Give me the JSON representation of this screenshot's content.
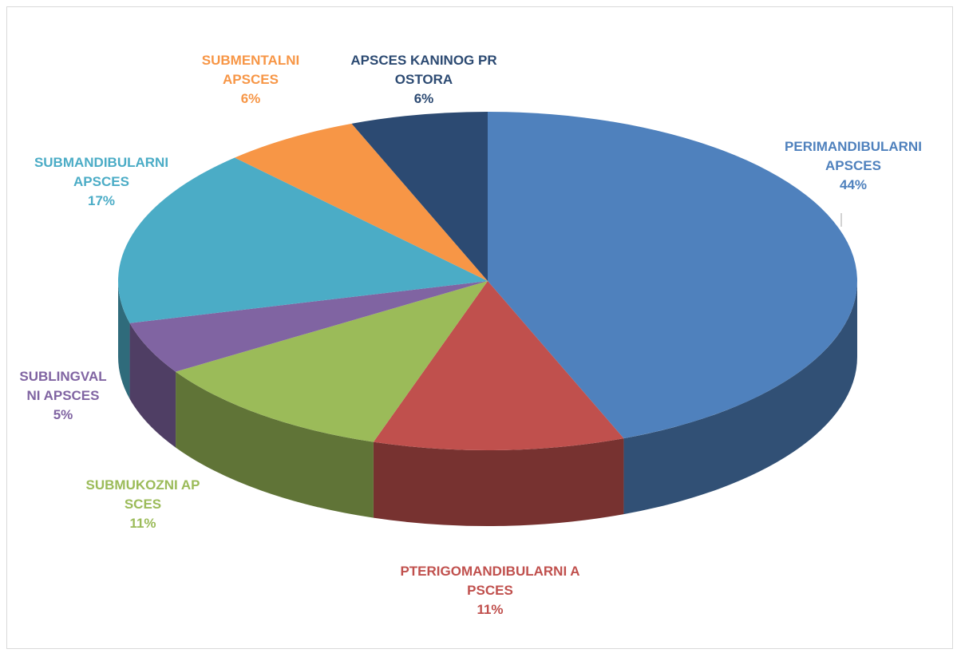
{
  "chart_data": {
    "type": "pie",
    "categories": [
      "PERIMANDIBULARNI APSCES",
      "PTERIGOMANDIBULARNI APSCES",
      "SUBMUKOZNI APSCES",
      "SUBLINGVALNI APSCES",
      "SUBMANDIBULARNI APSCES",
      "SUBMENTALNI APSCES",
      "APSCES KANINOG PROSTORA"
    ],
    "values": [
      44,
      11,
      11,
      5,
      17,
      6,
      6
    ],
    "value_labels": [
      "44%",
      "11%",
      "11%",
      "5%",
      "17%",
      "6%",
      "6%"
    ],
    "colors": [
      "#4f81bd",
      "#c0504d",
      "#9bbb59",
      "#8064a2",
      "#4bacc6",
      "#f79646",
      "#2c4a72"
    ]
  }
}
